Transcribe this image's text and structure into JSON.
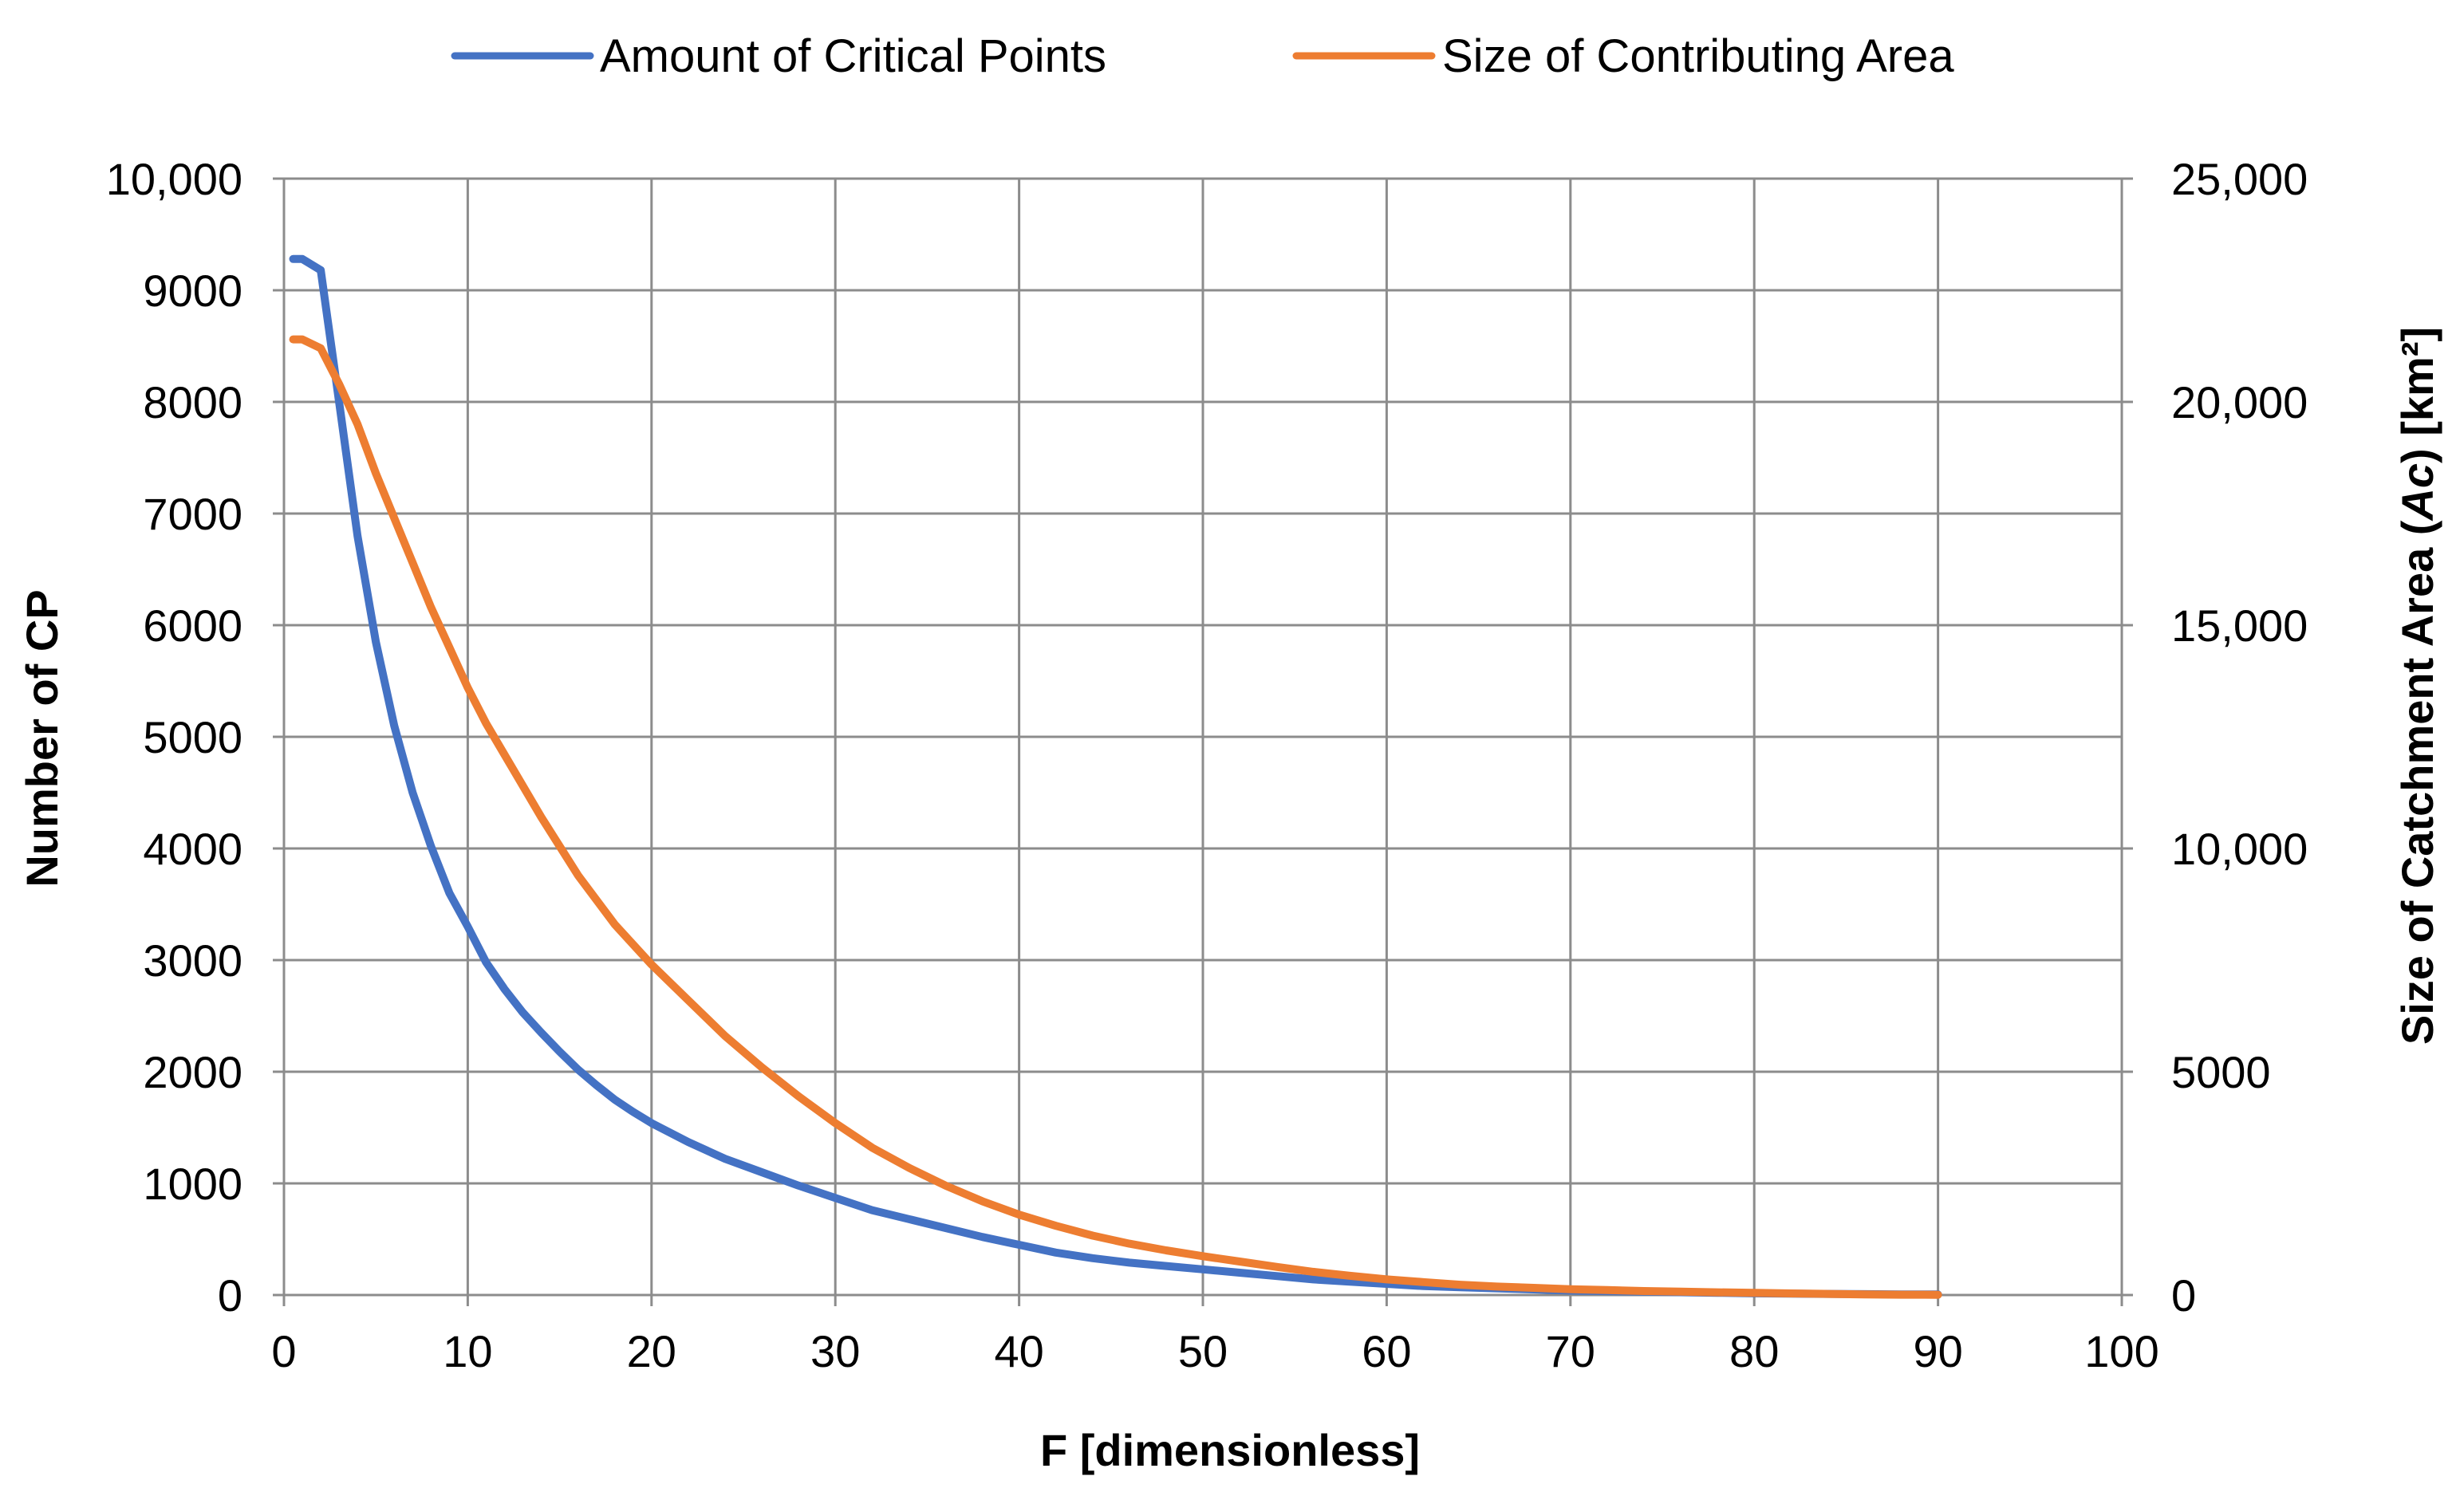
{
  "chart_data": {
    "type": "line",
    "title": "",
    "xlabel": "F [dimensionless]",
    "ylabel_left": "Number of CP",
    "ylabel_right_prefix": "Size of Catchment Area (",
    "ylabel_right_italic": "Ac",
    "ylabel_right_suffix": ") [km²]",
    "xlim": [
      0,
      100
    ],
    "ylim_left": [
      0,
      10000
    ],
    "ylim_right": [
      0,
      25000
    ],
    "x_ticks": [
      "0",
      "10",
      "20",
      "30",
      "40",
      "50",
      "60",
      "70",
      "80",
      "90",
      "100"
    ],
    "y_left_ticks": [
      "0",
      "1000",
      "2000",
      "3000",
      "4000",
      "5000",
      "6000",
      "7000",
      "8000",
      "9000",
      "10,000"
    ],
    "y_right_ticks": [
      "0",
      "5000",
      "10,000",
      "15,000",
      "20,000",
      "25,000"
    ],
    "grid": true,
    "legend_position": "top-center",
    "series": [
      {
        "name": "Amount of Critical Points",
        "axis": "left",
        "color": "#4472C4",
        "x": [
          0.5,
          1,
          2,
          3,
          4,
          5,
          6,
          7,
          8,
          9,
          10,
          11,
          12,
          13,
          14,
          15,
          16,
          17,
          18,
          19,
          20,
          22,
          24,
          26,
          28,
          30,
          32,
          34,
          36,
          38,
          40,
          42,
          44,
          46,
          48,
          50,
          52,
          54,
          56,
          58,
          60,
          62,
          64,
          66,
          68,
          70,
          72,
          74,
          76,
          78,
          80,
          82,
          84,
          86,
          88,
          90
        ],
        "y": [
          9280,
          9280,
          9180,
          8000,
          6800,
          5850,
          5100,
          4500,
          4020,
          3600,
          3300,
          2980,
          2740,
          2530,
          2350,
          2180,
          2020,
          1880,
          1750,
          1640,
          1540,
          1370,
          1220,
          1100,
          980,
          870,
          760,
          680,
          600,
          520,
          450,
          380,
          330,
          290,
          260,
          230,
          200,
          170,
          140,
          120,
          100,
          80,
          70,
          60,
          50,
          40,
          35,
          30,
          25,
          20,
          15,
          12,
          10,
          8,
          6,
          5
        ]
      },
      {
        "name": "Size of Contributing Area",
        "axis": "right",
        "color": "#ED7D31",
        "x": [
          0.5,
          1,
          2,
          3,
          4,
          5,
          6,
          7,
          8,
          9,
          10,
          11,
          12,
          14,
          16,
          18,
          20,
          22,
          24,
          26,
          28,
          30,
          32,
          34,
          36,
          38,
          40,
          42,
          44,
          46,
          48,
          50,
          52,
          54,
          56,
          58,
          60,
          62,
          64,
          66,
          68,
          70,
          72,
          74,
          76,
          78,
          80,
          82,
          84,
          86,
          88,
          90
        ],
        "y": [
          21400,
          21400,
          21200,
          20400,
          19500,
          18400,
          17400,
          16400,
          15400,
          14500,
          13600,
          12800,
          12100,
          10700,
          9400,
          8300,
          7400,
          6600,
          5800,
          5100,
          4450,
          3850,
          3300,
          2850,
          2450,
          2100,
          1800,
          1550,
          1330,
          1150,
          1000,
          870,
          750,
          630,
          520,
          430,
          350,
          290,
          230,
          190,
          160,
          130,
          110,
          90,
          75,
          60,
          50,
          35,
          25,
          15,
          8,
          5
        ]
      }
    ]
  }
}
